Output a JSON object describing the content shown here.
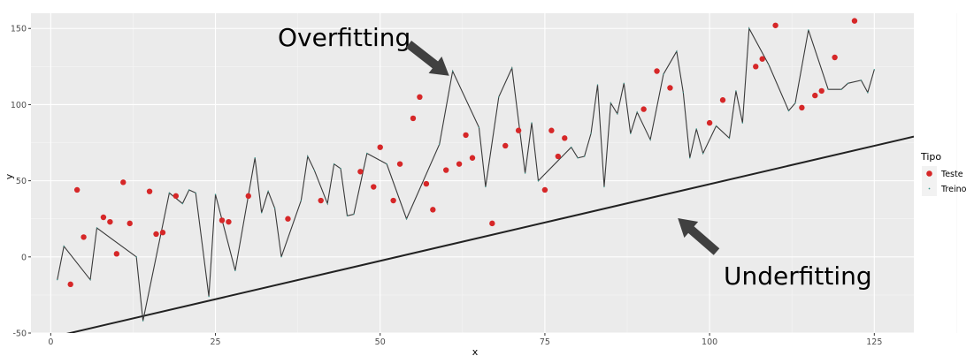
{
  "chart_data": {
    "type": "scatter",
    "xlabel": "x",
    "ylabel": "y",
    "xlim": [
      -3,
      131
    ],
    "ylim": [
      -50,
      160
    ],
    "x_ticks": [
      0,
      25,
      50,
      75,
      100,
      125
    ],
    "y_ticks": [
      -50,
      0,
      50,
      100,
      150
    ],
    "grid": true,
    "legend": {
      "title": "Tipo",
      "position": "right",
      "entries": [
        "Teste",
        "Treino"
      ]
    },
    "colors": {
      "teste": "#d62728",
      "treino": "#3a9a8f",
      "line": "#222222",
      "panel": "#ebebeb"
    },
    "series": [
      {
        "name": "Teste",
        "kind": "points",
        "x": [
          3,
          4,
          5,
          8,
          9,
          10,
          11,
          12,
          15,
          16,
          17,
          19,
          26,
          27,
          30,
          36,
          41,
          47,
          49,
          50,
          52,
          53,
          55,
          56,
          57,
          58,
          60,
          62,
          63,
          64,
          67,
          69,
          71,
          75,
          76,
          77,
          78,
          90,
          92,
          94,
          100,
          102,
          107,
          108,
          110,
          114,
          116,
          117,
          119,
          122
        ],
        "y": [
          -18,
          44,
          13,
          26,
          23,
          2,
          49,
          22,
          43,
          15,
          16,
          40,
          24,
          23,
          40,
          25,
          37,
          56,
          46,
          72,
          37,
          61,
          91,
          105,
          48,
          31,
          57,
          61,
          80,
          65,
          22,
          73,
          83,
          44,
          83,
          66,
          78,
          97,
          122,
          111,
          88,
          103,
          125,
          130,
          152,
          98,
          106,
          109,
          131,
          155
        ]
      },
      {
        "name": "Treino",
        "kind": "overfit-line",
        "x": [
          1,
          2,
          6,
          7,
          13,
          14,
          18,
          20,
          21,
          22,
          24,
          25,
          28,
          31,
          32,
          33,
          34,
          35,
          38,
          39,
          40,
          42,
          43,
          44,
          45,
          46,
          48,
          51,
          54,
          59,
          61,
          65,
          66,
          68,
          70,
          72,
          73,
          74,
          79,
          80,
          81,
          82,
          83,
          84,
          85,
          86,
          87,
          88,
          89,
          91,
          93,
          95,
          96,
          97,
          98,
          99,
          101,
          103,
          104,
          105,
          106,
          109,
          112,
          113,
          115,
          118,
          120,
          121,
          123,
          124,
          125
        ],
        "y": [
          -15,
          7,
          -15,
          19,
          0,
          -42,
          42,
          35,
          44,
          42,
          -26,
          41,
          -9,
          65,
          29,
          43,
          32,
          0,
          37,
          66,
          57,
          35,
          61,
          58,
          27,
          28,
          68,
          61,
          25,
          74,
          122,
          85,
          46,
          105,
          124,
          55,
          88,
          50,
          72,
          65,
          66,
          81,
          113,
          46,
          101,
          94,
          114,
          81,
          95,
          77,
          120,
          135,
          108,
          65,
          84,
          68,
          86,
          78,
          109,
          88,
          150,
          126,
          96,
          101,
          149,
          110,
          110,
          114,
          116,
          108,
          123
        ]
      },
      {
        "name": "",
        "kind": "underfit-line",
        "x": [
          -3,
          131
        ],
        "y": [
          -56,
          79
        ]
      }
    ],
    "annotations": [
      {
        "text": "Overfitting",
        "x": 32,
        "y": 149
      },
      {
        "text": "Underfitting",
        "x": 111,
        "y": -12
      }
    ]
  }
}
